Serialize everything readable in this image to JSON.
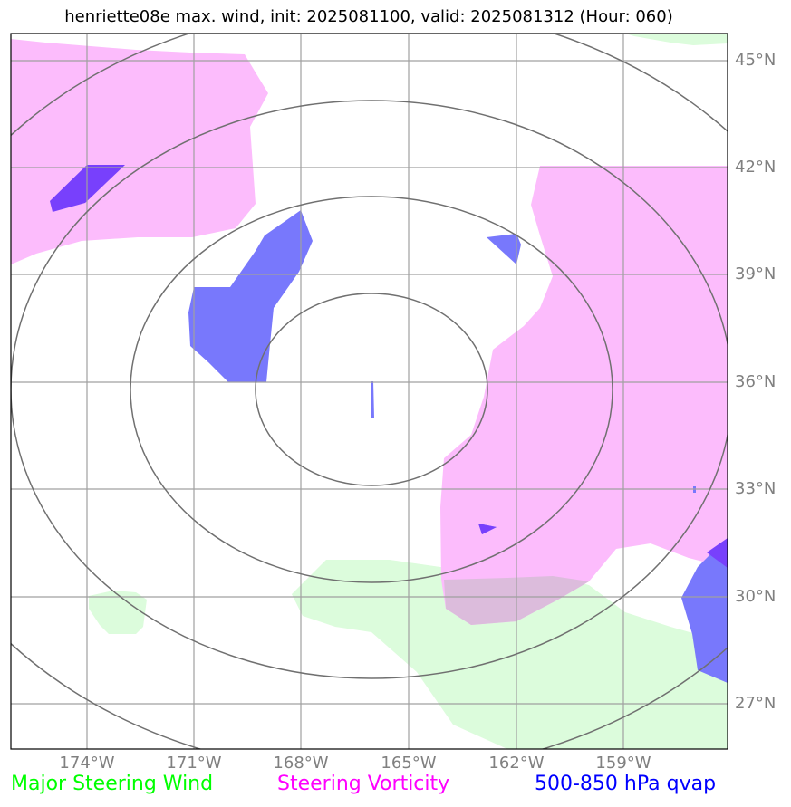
{
  "title": "henriette08e max. wind, init: 2025081100, valid: 2025081312 (Hour: 060)",
  "lat_labels": [
    "45°N",
    "42°N",
    "39°N",
    "36°N",
    "33°N",
    "30°N",
    "27°N"
  ],
  "lon_labels": [
    "174°W",
    "171°W",
    "168°W",
    "165°W",
    "162°W",
    "159°W"
  ],
  "legend": {
    "wind": {
      "label": "Major Steering Wind",
      "color": "#00ff00"
    },
    "vorticity": {
      "label": "Steering Vorticity",
      "color": "#ff00ff"
    },
    "qvap": {
      "label": "500-850 hPa qvap",
      "color": "#0000ff"
    }
  },
  "layers": {
    "wind_fill": "#dcfcdc",
    "vorticity_fill": "#fcbcfc",
    "qvap_fill": "#7878fc",
    "overlap_fill": "#7840fc",
    "vort_wind_overlap_fill": "#dcbcdc"
  }
}
